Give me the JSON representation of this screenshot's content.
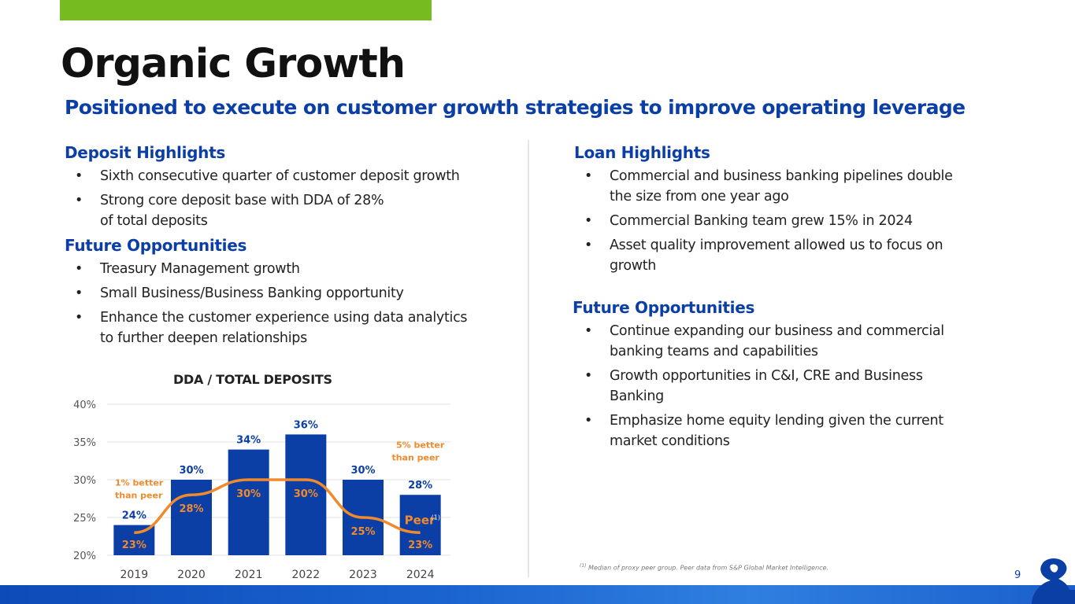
{
  "header": {
    "title": "Organic Growth",
    "subtitle": "Positioned to execute on customer growth strategies to improve operating leverage"
  },
  "left": {
    "deposit_heading": "Deposit Highlights",
    "deposit_items": [
      {
        "line1": "Sixth consecutive quarter of customer deposit growth",
        "line2": ""
      },
      {
        "line1": "Strong core deposit base with DDA of 28%",
        "line2": "of total deposits"
      }
    ],
    "future_heading": "Future Opportunities",
    "future_items": [
      {
        "line1": "Treasury Management growth",
        "line2": ""
      },
      {
        "line1": "Small Business/Business Banking opportunity",
        "line2": ""
      },
      {
        "line1": "Enhance the customer experience using data analytics",
        "line2": "to further deepen relationships"
      }
    ]
  },
  "right": {
    "loan_heading": "Loan Highlights",
    "loan_items": [
      {
        "line1": "Commercial and business banking pipelines double",
        "line2": "the size from one year ago"
      },
      {
        "line1": "Commercial Banking team grew 15% in 2024",
        "line2": ""
      },
      {
        "line1": "Asset quality improvement allowed us to focus on",
        "line2": "growth"
      }
    ],
    "future_heading": "Future Opportunities",
    "future_items": [
      {
        "line1": "Continue expanding our business and commercial",
        "line2": "banking teams and capabilities"
      },
      {
        "line1": "Growth opportunities in C&I, CRE and Business",
        "line2": "Banking"
      },
      {
        "line1": "Emphasize home equity lending given the current",
        "line2": "market conditions"
      }
    ]
  },
  "bullet_char": "•",
  "chart_data": {
    "type": "bar",
    "title": "DDA / TOTAL DEPOSITS",
    "categories": [
      "2019",
      "2020",
      "2021",
      "2022",
      "2023",
      "2024"
    ],
    "series": [
      {
        "values": [
          24,
          30,
          34,
          36,
          30,
          28
        ],
        "labels": [
          "24%",
          "30%",
          "34%",
          "36%",
          "30%",
          "28%"
        ],
        "color": "#0b3fa6",
        "kind": "bar"
      },
      {
        "name": "Peer",
        "name_superscript": "(1)",
        "values": [
          23,
          28,
          30,
          30,
          25,
          23
        ],
        "labels": [
          "23%",
          "28%",
          "30%",
          "30%",
          "25%",
          "23%"
        ],
        "color": "#f08a2c",
        "kind": "line"
      }
    ],
    "ylim": [
      20,
      40
    ],
    "yticks": [
      "20%",
      "25%",
      "30%",
      "35%",
      "40%"
    ],
    "annotations": [
      {
        "line1": "1% better",
        "line2": "than peer"
      },
      {
        "line1": "5% better",
        "line2": "than peer"
      }
    ],
    "grid": true
  },
  "footnote": {
    "marker": "(1)",
    "text": "Median of proxy peer group. Peer data from S&P Global Market Intelligence."
  },
  "page_number": "9",
  "colors": {
    "accent_green": "#76bc21",
    "brand_blue": "#0b3fa6",
    "peer_orange": "#f08a2c"
  }
}
